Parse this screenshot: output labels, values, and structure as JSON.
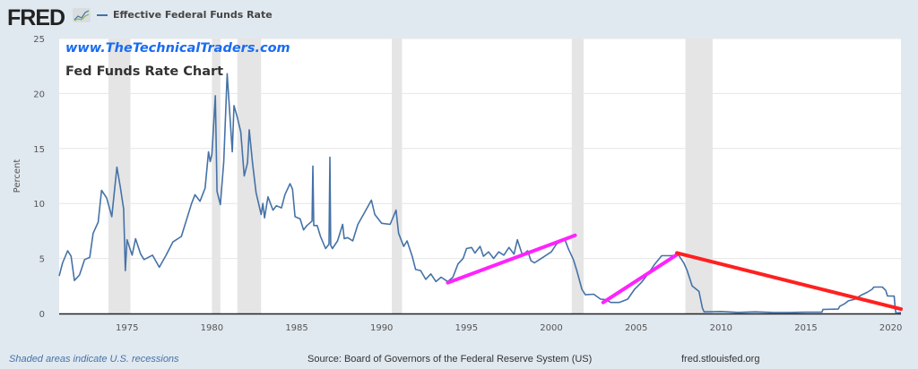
{
  "header": {
    "logo_text": "FRED",
    "series_label": "Effective Federal Funds Rate"
  },
  "watermark": {
    "url": "www.TheTechnicalTraders.com",
    "title": "Fed Funds Rate Chart"
  },
  "footer": {
    "recessions_note": "Shaded areas indicate U.S. recessions",
    "source": "Source: Board of Governors of the Federal Reserve System (US)",
    "site": "fred.stlouisfed.org"
  },
  "colors": {
    "series": "#4572a7",
    "trend_up": "#ff22ff",
    "trend_down": "#ff2020",
    "recession": "#e5e5e5",
    "background": "#e1e9f0"
  },
  "chart_data": {
    "type": "line",
    "title": "Effective Federal Funds Rate",
    "xlabel": "",
    "ylabel": "Percent",
    "xlim": [
      1971.0,
      2020.6
    ],
    "ylim": [
      0,
      25
    ],
    "x_ticks": [
      "1975",
      "1980",
      "1985",
      "1990",
      "1995",
      "2000",
      "2005",
      "2010",
      "2015",
      "2020"
    ],
    "y_ticks": [
      "0",
      "5",
      "10",
      "15",
      "20",
      "25"
    ],
    "grid": true,
    "recessions": [
      [
        1973.9,
        1975.2
      ],
      [
        1980.0,
        1980.5
      ],
      [
        1981.5,
        1982.9
      ],
      [
        1990.6,
        1991.2
      ],
      [
        2001.2,
        2001.9
      ],
      [
        2007.9,
        2009.5
      ]
    ],
    "series": [
      {
        "name": "Effective Federal Funds Rate",
        "points": [
          [
            1971.0,
            3.4
          ],
          [
            1971.2,
            4.6
          ],
          [
            1971.5,
            5.7
          ],
          [
            1971.7,
            5.2
          ],
          [
            1971.9,
            3.0
          ],
          [
            1972.2,
            3.5
          ],
          [
            1972.5,
            4.9
          ],
          [
            1972.8,
            5.1
          ],
          [
            1973.0,
            7.3
          ],
          [
            1973.3,
            8.3
          ],
          [
            1973.5,
            11.2
          ],
          [
            1973.8,
            10.5
          ],
          [
            1974.1,
            8.8
          ],
          [
            1974.4,
            13.3
          ],
          [
            1974.6,
            11.5
          ],
          [
            1974.8,
            9.5
          ],
          [
            1974.9,
            3.9
          ],
          [
            1975.0,
            6.7
          ],
          [
            1975.3,
            5.3
          ],
          [
            1975.5,
            6.8
          ],
          [
            1975.8,
            5.4
          ],
          [
            1976.0,
            4.9
          ],
          [
            1976.5,
            5.3
          ],
          [
            1976.9,
            4.2
          ],
          [
            1977.3,
            5.3
          ],
          [
            1977.7,
            6.5
          ],
          [
            1978.2,
            7.0
          ],
          [
            1978.8,
            10.0
          ],
          [
            1979.0,
            10.8
          ],
          [
            1979.3,
            10.2
          ],
          [
            1979.6,
            11.4
          ],
          [
            1979.8,
            14.7
          ],
          [
            1979.9,
            13.8
          ],
          [
            1980.0,
            14.5
          ],
          [
            1980.2,
            19.8
          ],
          [
            1980.3,
            11.1
          ],
          [
            1980.5,
            9.9
          ],
          [
            1980.7,
            13.8
          ],
          [
            1980.9,
            21.8
          ],
          [
            1981.2,
            14.7
          ],
          [
            1981.3,
            18.9
          ],
          [
            1981.5,
            17.8
          ],
          [
            1981.7,
            16.5
          ],
          [
            1981.9,
            12.5
          ],
          [
            1982.1,
            13.7
          ],
          [
            1982.2,
            16.7
          ],
          [
            1982.4,
            13.6
          ],
          [
            1982.6,
            11.0
          ],
          [
            1982.9,
            9.0
          ],
          [
            1983.0,
            10.0
          ],
          [
            1983.1,
            8.7
          ],
          [
            1983.3,
            10.6
          ],
          [
            1983.6,
            9.4
          ],
          [
            1983.8,
            9.8
          ],
          [
            1984.1,
            9.6
          ],
          [
            1984.3,
            10.8
          ],
          [
            1984.6,
            11.8
          ],
          [
            1984.75,
            11.3
          ],
          [
            1984.9,
            8.8
          ],
          [
            1985.2,
            8.6
          ],
          [
            1985.4,
            7.6
          ],
          [
            1985.6,
            8.0
          ],
          [
            1985.9,
            8.4
          ],
          [
            1985.95,
            13.4
          ],
          [
            1986.0,
            8.0
          ],
          [
            1986.2,
            8.0
          ],
          [
            1986.4,
            7.0
          ],
          [
            1986.7,
            5.9
          ],
          [
            1986.9,
            6.3
          ],
          [
            1986.95,
            14.2
          ],
          [
            1987.0,
            6.2
          ],
          [
            1987.1,
            5.9
          ],
          [
            1987.4,
            6.6
          ],
          [
            1987.7,
            8.1
          ],
          [
            1987.8,
            6.8
          ],
          [
            1988.0,
            6.9
          ],
          [
            1988.3,
            6.6
          ],
          [
            1988.6,
            8.1
          ],
          [
            1989.0,
            9.2
          ],
          [
            1989.4,
            10.3
          ],
          [
            1989.6,
            9.0
          ],
          [
            1990.0,
            8.2
          ],
          [
            1990.5,
            8.1
          ],
          [
            1990.85,
            9.4
          ],
          [
            1991.0,
            7.3
          ],
          [
            1991.3,
            6.1
          ],
          [
            1991.5,
            6.6
          ],
          [
            1991.8,
            5.2
          ],
          [
            1992.0,
            4.0
          ],
          [
            1992.3,
            3.9
          ],
          [
            1992.6,
            3.1
          ],
          [
            1992.9,
            3.6
          ],
          [
            1993.2,
            2.9
          ],
          [
            1993.5,
            3.3
          ],
          [
            1993.9,
            2.9
          ],
          [
            1994.2,
            3.3
          ],
          [
            1994.5,
            4.5
          ],
          [
            1994.8,
            5.0
          ],
          [
            1995.0,
            5.9
          ],
          [
            1995.3,
            6.0
          ],
          [
            1995.5,
            5.5
          ],
          [
            1995.8,
            6.1
          ],
          [
            1996.0,
            5.2
          ],
          [
            1996.3,
            5.6
          ],
          [
            1996.6,
            5.0
          ],
          [
            1996.9,
            5.6
          ],
          [
            1997.2,
            5.3
          ],
          [
            1997.5,
            6.0
          ],
          [
            1997.8,
            5.4
          ],
          [
            1998.0,
            6.7
          ],
          [
            1998.3,
            5.3
          ],
          [
            1998.6,
            5.7
          ],
          [
            1998.8,
            4.8
          ],
          [
            1999.0,
            4.6
          ],
          [
            1999.3,
            4.9
          ],
          [
            1999.7,
            5.3
          ],
          [
            2000.0,
            5.6
          ],
          [
            2000.3,
            6.3
          ],
          [
            2000.5,
            6.5
          ],
          [
            2000.8,
            6.7
          ],
          [
            2001.0,
            5.9
          ],
          [
            2001.3,
            4.9
          ],
          [
            2001.5,
            3.9
          ],
          [
            2001.8,
            2.2
          ],
          [
            2002.0,
            1.7
          ],
          [
            2002.5,
            1.75
          ],
          [
            2002.9,
            1.3
          ],
          [
            2003.2,
            1.25
          ],
          [
            2003.5,
            1.0
          ],
          [
            2004.0,
            1.0
          ],
          [
            2004.5,
            1.3
          ],
          [
            2004.9,
            2.2
          ],
          [
            2005.3,
            2.8
          ],
          [
            2005.7,
            3.6
          ],
          [
            2006.1,
            4.5
          ],
          [
            2006.5,
            5.25
          ],
          [
            2007.0,
            5.25
          ],
          [
            2007.5,
            5.3
          ],
          [
            2007.8,
            4.6
          ],
          [
            2008.0,
            3.9
          ],
          [
            2008.3,
            2.5
          ],
          [
            2008.7,
            2.0
          ],
          [
            2008.9,
            0.5
          ],
          [
            2009.0,
            0.15
          ],
          [
            2010.0,
            0.18
          ],
          [
            2011.0,
            0.1
          ],
          [
            2012.0,
            0.15
          ],
          [
            2013.0,
            0.1
          ],
          [
            2014.0,
            0.09
          ],
          [
            2015.0,
            0.12
          ],
          [
            2015.95,
            0.13
          ],
          [
            2016.0,
            0.37
          ],
          [
            2016.9,
            0.4
          ],
          [
            2017.0,
            0.66
          ],
          [
            2017.3,
            0.9
          ],
          [
            2017.5,
            1.15
          ],
          [
            2017.9,
            1.3
          ],
          [
            2018.0,
            1.42
          ],
          [
            2018.3,
            1.7
          ],
          [
            2018.6,
            1.91
          ],
          [
            2018.9,
            2.2
          ],
          [
            2019.0,
            2.4
          ],
          [
            2019.5,
            2.4
          ],
          [
            2019.7,
            2.1
          ],
          [
            2019.8,
            1.6
          ],
          [
            2020.2,
            1.58
          ],
          [
            2020.25,
            0.65
          ],
          [
            2020.3,
            0.05
          ],
          [
            2020.6,
            0.09
          ]
        ]
      }
    ],
    "annotations": [
      {
        "name": "uptrend-1994-2001",
        "color": "#ff22ff",
        "from": [
          1993.9,
          2.8
        ],
        "to": [
          2001.4,
          7.1
        ]
      },
      {
        "name": "uptrend-2003-2007",
        "color": "#ff22ff",
        "from": [
          2003.05,
          1.0
        ],
        "to": [
          2007.5,
          5.45
        ]
      },
      {
        "name": "downtrend-2007-2020",
        "color": "#ff2020",
        "from": [
          2007.4,
          5.5
        ],
        "to": [
          2020.6,
          0.4
        ]
      }
    ]
  }
}
